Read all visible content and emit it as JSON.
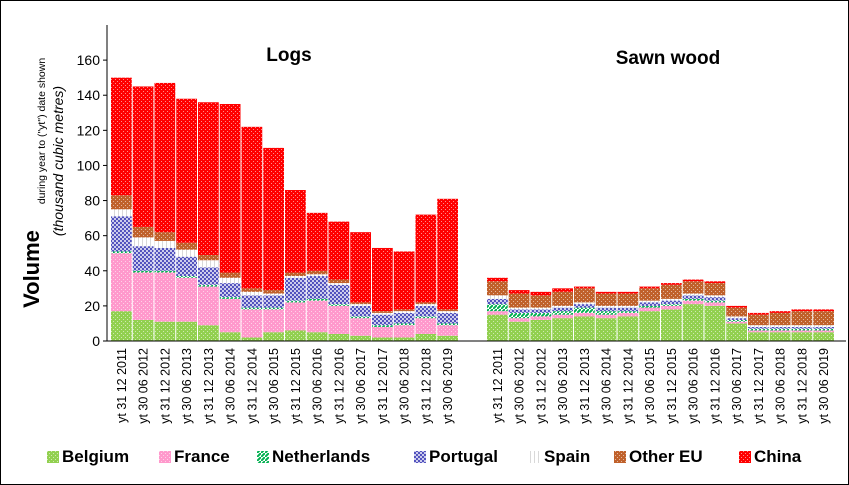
{
  "chart_data": {
    "type": "bar",
    "stacked": true,
    "ylabel_main": "Volume",
    "ylabel_sub": "during year to (\"yt\") date shown",
    "ylabel_units": "(thousand cubic metres)",
    "ylim": [
      0,
      180
    ],
    "yticks": [
      0,
      20,
      40,
      60,
      80,
      100,
      120,
      140,
      160
    ],
    "legend_position": "bottom",
    "colors": {
      "Belgium": "#92d050",
      "France": "#ff99cc",
      "Netherlands": "#00b050",
      "Portugal": "#3b3bb5",
      "Spain": "#d9d9d9",
      "Other EU": "#c0612b",
      "China": "#ff0000"
    },
    "legend": [
      "Belgium",
      "France",
      "Netherlands",
      "Portugal",
      "Spain",
      "Other EU",
      "China"
    ],
    "panels": [
      {
        "title": "Logs",
        "categories": [
          "yt 31 12 2011",
          "yt 30 06 2012",
          "yt 31 12 2012",
          "yt 30 06 2013",
          "yt 31 12 2013",
          "yt 30 06 2014",
          "yt 31 12 2014",
          "yt 30 06 2015",
          "yt 31 12 2015",
          "yt 30 06 2016",
          "yt 31 12 2016",
          "yt 30 06 2017",
          "yt 31 12 2017",
          "yt 30 06 2018",
          "yt 31 12 2018",
          "yt 30 06 2019"
        ],
        "series": [
          {
            "name": "Belgium",
            "values": [
              17,
              12,
              11,
              11,
              9,
              5,
              2,
              5,
              6,
              5,
              4,
              3,
              2,
              2,
              4,
              3
            ]
          },
          {
            "name": "France",
            "values": [
              33,
              27,
              28,
              25,
              22,
              19,
              16,
              13,
              16,
              18,
              16,
              10,
              6,
              7,
              9,
              6
            ]
          },
          {
            "name": "Netherlands",
            "values": [
              1,
              1,
              1,
              1,
              1,
              1,
              1,
              1,
              1,
              1,
              1,
              1,
              1,
              1,
              1,
              1
            ]
          },
          {
            "name": "Portugal",
            "values": [
              20,
              14,
              13,
              11,
              10,
              8,
              7,
              7,
              13,
              13,
              11,
              6,
              6,
              6,
              6,
              6
            ]
          },
          {
            "name": "Spain",
            "values": [
              4,
              5,
              4,
              4,
              4,
              3,
              2,
              1,
              1,
              1,
              1,
              1,
              1,
              1,
              1,
              1
            ]
          },
          {
            "name": "Other EU",
            "values": [
              8,
              6,
              5,
              4,
              3,
              3,
              2,
              2,
              2,
              2,
              2,
              1,
              1,
              1,
              1,
              1
            ]
          },
          {
            "name": "China",
            "values": [
              67,
              80,
              85,
              82,
              87,
              96,
              92,
              81,
              47,
              33,
              33,
              40,
              36,
              33,
              50,
              63
            ]
          }
        ]
      },
      {
        "title": "Sawn wood",
        "categories": [
          "yt 31 12 2011",
          "yt 30 06 2012",
          "yt 31 12 2012",
          "yt 30 06 2013",
          "yt 31 12 2013",
          "yt 30 06 2014",
          "yt 31 12 2014",
          "yt 30 06 2015",
          "yt 31 12 2015",
          "yt 30 06 2016",
          "yt 31 12 2016",
          "yt 30 06 2017",
          "yt 31 12 2017",
          "yt 30 06 2018",
          "yt 31 12 2018",
          "yt 30 06 2019"
        ],
        "series": [
          {
            "name": "Belgium",
            "values": [
              15,
              11,
              12,
              13,
              14,
              13,
              14,
              17,
              18,
              21,
              20,
              10,
              5,
              5,
              5,
              5
            ]
          },
          {
            "name": "France",
            "values": [
              2,
              2,
              2,
              2,
              2,
              2,
              2,
              2,
              2,
              2,
              2,
              1,
              1,
              1,
              1,
              1
            ]
          },
          {
            "name": "Netherlands",
            "values": [
              4,
              3,
              2,
              2,
              3,
              2,
              1,
              1,
              1,
              1,
              1,
              1,
              1,
              1,
              1,
              1
            ]
          },
          {
            "name": "Portugal",
            "values": [
              3,
              2,
              2,
              2,
              2,
              2,
              2,
              2,
              2,
              2,
              2,
              1,
              1,
              1,
              1,
              1
            ]
          },
          {
            "name": "Spain",
            "values": [
              2,
              1,
              1,
              1,
              1,
              1,
              1,
              1,
              1,
              1,
              1,
              1,
              1,
              1,
              1,
              1
            ]
          },
          {
            "name": "Other EU",
            "values": [
              8,
              8,
              7,
              8,
              8,
              7,
              7,
              7,
              8,
              7,
              7,
              5,
              6,
              7,
              8,
              8
            ]
          },
          {
            "name": "China",
            "values": [
              2,
              2,
              2,
              2,
              1,
              1,
              1,
              1,
              1,
              1,
              1,
              1,
              1,
              1,
              1,
              1
            ]
          }
        ]
      }
    ]
  }
}
